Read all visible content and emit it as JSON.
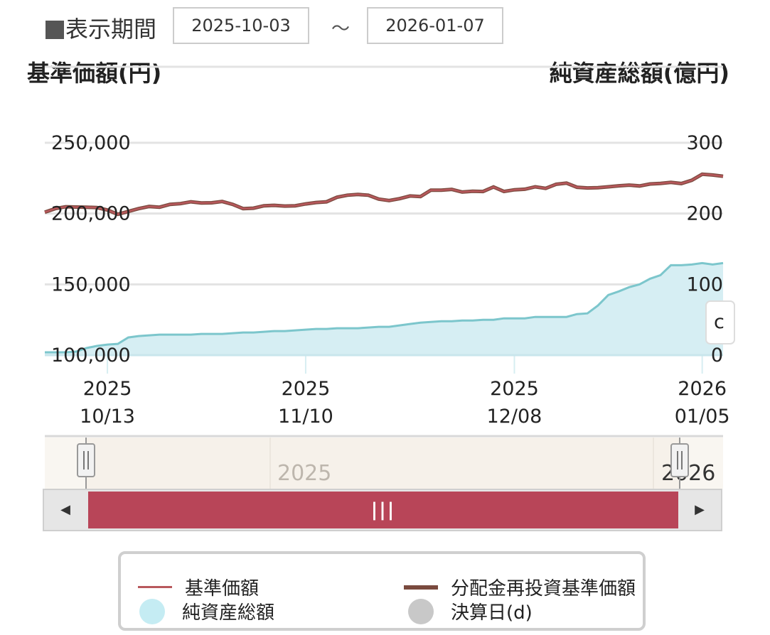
{
  "period": {
    "label": "表示期間",
    "start": "2025-10-03",
    "separator": "～",
    "end": "2026-01-07"
  },
  "colors": {
    "nav_line": "#b8585c",
    "reinvest_line": "#7a4a3e",
    "assets_fill": "#d6eef3",
    "assets_line": "#7cc6cc",
    "scroll_thumb": "#b84558",
    "grid": "#e3e3e3"
  },
  "chart_data": {
    "type": "line+area",
    "left_axis_title": "基準価額(円)",
    "right_axis_title": "純資産総額(億円)",
    "left_ticks": [
      "250,000",
      "200,000",
      "150,000",
      "100,000"
    ],
    "left_tick_values": [
      250000,
      200000,
      150000,
      100000
    ],
    "right_ticks": [
      "300",
      "200",
      "100",
      "0"
    ],
    "right_tick_values": [
      300,
      200,
      100,
      0
    ],
    "left_range": [
      100000,
      250000
    ],
    "right_range": [
      0,
      300
    ],
    "x_ticks": [
      {
        "year": "2025",
        "date": "10/13",
        "index": 6
      },
      {
        "year": "2025",
        "date": "11/10",
        "index": 25
      },
      {
        "year": "2025",
        "date": "12/08",
        "index": 45
      },
      {
        "year": "2026",
        "date": "01/05",
        "index": 63
      }
    ],
    "x_count": 66,
    "series": [
      {
        "name": "基準価額",
        "axis": "left",
        "values": [
          201000,
          203500,
          204800,
          204600,
          204500,
          204200,
          202500,
          199500,
          201500,
          203500,
          205000,
          204500,
          206500,
          207000,
          208300,
          207500,
          207600,
          208500,
          206500,
          203500,
          203800,
          205500,
          205800,
          205300,
          205500,
          206800,
          207800,
          208300,
          211500,
          213000,
          213500,
          213000,
          210200,
          209200,
          210500,
          212400,
          212000,
          216500,
          216500,
          217100,
          215200,
          215800,
          215600,
          218800,
          215600,
          216800,
          217200,
          218900,
          217800,
          220700,
          221500,
          218600,
          218100,
          218300,
          218900,
          219600,
          220100,
          219500,
          220900,
          221300,
          222000,
          221200,
          223500,
          227800,
          227200,
          226300
        ]
      },
      {
        "name": "分配金再投資基準価額",
        "axis": "left",
        "values": [
          201000,
          203500,
          204800,
          204600,
          204500,
          204200,
          202500,
          199500,
          201500,
          203500,
          205000,
          204500,
          206500,
          207000,
          208300,
          207500,
          207600,
          208500,
          206500,
          203500,
          203800,
          205500,
          205800,
          205300,
          205500,
          206800,
          207800,
          208300,
          211500,
          213000,
          213500,
          213000,
          210200,
          209200,
          210500,
          212400,
          212000,
          216500,
          216500,
          217100,
          215200,
          215800,
          215600,
          218800,
          215600,
          216800,
          217200,
          218900,
          217800,
          220700,
          221500,
          218600,
          218100,
          218300,
          218900,
          219600,
          220100,
          219500,
          220900,
          221300,
          222000,
          221200,
          223500,
          227800,
          227200,
          226300
        ]
      },
      {
        "name": "純資産総額",
        "axis": "right",
        "values": [
          4,
          4,
          4,
          5,
          10,
          13,
          15,
          16,
          25,
          27,
          28,
          29,
          29,
          29,
          29,
          30,
          30,
          30,
          31,
          32,
          32,
          33,
          34,
          34,
          35,
          36,
          37,
          37,
          38,
          38,
          38,
          39,
          40,
          40,
          42,
          44,
          46,
          47,
          48,
          48,
          49,
          49,
          50,
          50,
          52,
          52,
          52,
          54,
          54,
          54,
          54,
          58,
          59,
          70,
          85,
          90,
          96,
          100,
          108,
          113,
          127,
          127,
          128,
          130,
          128,
          130
        ]
      }
    ],
    "legend": [
      {
        "label": "基準価額",
        "marker": "thin-line"
      },
      {
        "label": "分配金再投資基準価額",
        "marker": "thick-line"
      },
      {
        "label": "純資産総額",
        "marker": "circle-cyan"
      },
      {
        "label": "決算日(d)",
        "marker": "circle-gray"
      }
    ]
  },
  "tooltip_glimpse": "c",
  "navigator": {
    "year_left": "2025",
    "year_right": "2026"
  },
  "scrollbar": {
    "left_arrow": "◀",
    "thumb_grip": "|||",
    "right_arrow": "▶"
  }
}
